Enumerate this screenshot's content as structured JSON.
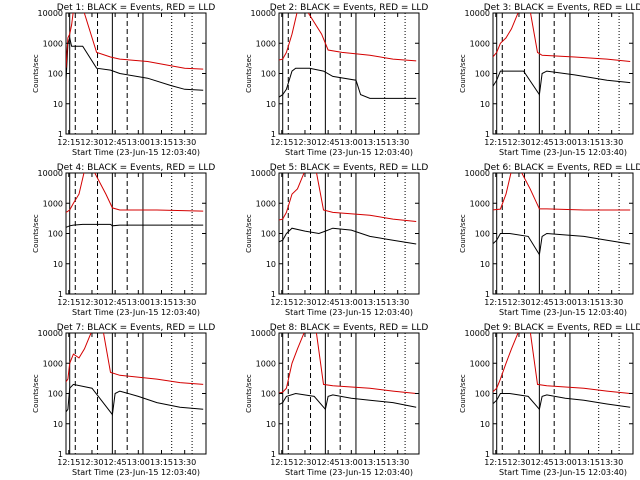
{
  "figure": {
    "start_label": "Start Time (23-Jun-15 12:03:40)",
    "ylabel": "Counts/sec",
    "title_suffix": "BLACK = Events, RED = LLD",
    "colors": {
      "events": "#000000",
      "lld": "#d40000",
      "axes": "#000000",
      "background": "#ffffff"
    }
  },
  "chart_data": [
    {
      "type": "line",
      "title": "Det 1: BLACK = Events, RED = LLD",
      "xlabel": "Start Time (23-Jun-15 12:03:40)",
      "ylabel": "Counts/sec",
      "yscale": "log",
      "ylim": [
        1,
        10000
      ],
      "xlim": [
        12.22,
        13.73
      ],
      "xticks": [
        "12:15",
        "12:30",
        "12:45",
        "13:00",
        "13:15",
        "13:30"
      ],
      "yticks": [
        "1",
        "10",
        "100",
        "1000",
        "10000"
      ],
      "series": [
        {
          "name": "Events",
          "color": "#000000",
          "x": [
            12.2,
            12.22,
            12.24,
            12.26,
            12.28,
            12.3,
            12.4,
            12.55,
            12.7,
            12.8,
            13.1,
            13.35,
            13.5,
            13.7
          ],
          "y": [
            40,
            55,
            950,
            1500,
            800,
            800,
            800,
            150,
            130,
            100,
            70,
            40,
            30,
            28
          ]
        },
        {
          "name": "LLD",
          "color": "#d40000",
          "x": [
            12.2,
            12.22,
            12.24,
            12.26,
            12.28,
            12.3,
            12.4,
            12.55,
            12.7,
            12.8,
            13.1,
            13.35,
            13.5,
            13.7
          ],
          "y": [
            140,
            160,
            1500,
            2000,
            4000,
            12000,
            15000,
            500,
            350,
            300,
            250,
            180,
            150,
            140
          ]
        }
      ]
    },
    {
      "type": "line",
      "title": "Det 2: BLACK = Events, RED = LLD",
      "xlabel": "Start Time (23-Jun-15 12:03:40)",
      "ylabel": "Counts/sec",
      "yscale": "log",
      "ylim": [
        1,
        10000
      ],
      "xlim": [
        12.22,
        13.73
      ],
      "xticks": [
        "12:15",
        "12:30",
        "12:45",
        "13:00",
        "13:15",
        "13:30"
      ],
      "yticks": [
        "1",
        "10",
        "100",
        "1000",
        "10000"
      ],
      "series": [
        {
          "name": "Events",
          "color": "#000000",
          "x": [
            12.2,
            12.26,
            12.3,
            12.36,
            12.4,
            12.55,
            12.7,
            12.8,
            13.05,
            13.1,
            13.2,
            13.45,
            13.7
          ],
          "y": [
            15,
            20,
            30,
            120,
            150,
            150,
            120,
            80,
            60,
            20,
            15,
            15,
            15
          ]
        },
        {
          "name": "LLD",
          "color": "#d40000",
          "x": [
            12.2,
            12.26,
            12.3,
            12.36,
            12.42,
            12.5,
            12.68,
            12.75,
            12.9,
            13.2,
            13.45,
            13.7
          ],
          "y": [
            270,
            300,
            500,
            2000,
            12000,
            15000,
            2000,
            600,
            500,
            400,
            300,
            260
          ]
        }
      ]
    },
    {
      "type": "line",
      "title": "Det 3: BLACK = Events, RED = LLD",
      "xlabel": "Start Time (23-Jun-15 12:03:40)",
      "ylabel": "Counts/sec",
      "yscale": "log",
      "ylim": [
        1,
        10000
      ],
      "xlim": [
        12.22,
        13.73
      ],
      "xticks": [
        "12:15",
        "12:30",
        "12:45",
        "13:00",
        "13:15",
        "13:30"
      ],
      "yticks": [
        "1",
        "10",
        "100",
        "1000",
        "10000"
      ],
      "series": [
        {
          "name": "Events",
          "color": "#000000",
          "x": [
            12.2,
            12.26,
            12.3,
            12.4,
            12.55,
            12.72,
            12.75,
            12.8,
            13.1,
            13.45,
            13.7
          ],
          "y": [
            30,
            60,
            120,
            120,
            120,
            20,
            100,
            120,
            90,
            60,
            50
          ]
        },
        {
          "name": "LLD",
          "color": "#d40000",
          "x": [
            12.2,
            12.26,
            12.3,
            12.36,
            12.42,
            12.5,
            12.62,
            12.7,
            12.75,
            13.1,
            13.45,
            13.7
          ],
          "y": [
            300,
            500,
            1000,
            1500,
            3000,
            12000,
            12000,
            500,
            400,
            350,
            300,
            250
          ]
        }
      ]
    },
    {
      "type": "line",
      "title": "Det 4: BLACK = Events, RED = LLD",
      "xlabel": "Start Time (23-Jun-15 12:03:40)",
      "ylabel": "Counts/sec",
      "yscale": "log",
      "ylim": [
        1,
        10000
      ],
      "xlim": [
        12.22,
        13.73
      ],
      "xticks": [
        "12:15",
        "12:30",
        "12:45",
        "13:00",
        "13:15",
        "13:30"
      ],
      "yticks": [
        "1",
        "10",
        "100",
        "1000",
        "10000"
      ],
      "series": [
        {
          "name": "Events",
          "color": "#000000",
          "x": [
            12.2,
            12.26,
            12.3,
            12.4,
            12.6,
            12.7,
            12.72,
            12.8,
            13.2,
            13.7
          ],
          "y": [
            150,
            180,
            190,
            200,
            200,
            200,
            180,
            190,
            190,
            190
          ]
        },
        {
          "name": "LLD",
          "color": "#d40000",
          "x": [
            12.2,
            12.26,
            12.3,
            12.36,
            12.42,
            12.5,
            12.65,
            12.72,
            12.8,
            13.2,
            13.7
          ],
          "y": [
            450,
            600,
            1000,
            2000,
            12000,
            15000,
            2000,
            700,
            600,
            600,
            550
          ]
        }
      ]
    },
    {
      "type": "line",
      "title": "Det 5: BLACK = Events, RED = LLD",
      "xlabel": "Start Time (23-Jun-15 12:03:40)",
      "ylabel": "Counts/sec",
      "yscale": "log",
      "ylim": [
        1,
        10000
      ],
      "xlim": [
        12.22,
        13.73
      ],
      "xticks": [
        "12:15",
        "12:30",
        "12:45",
        "13:00",
        "13:15",
        "13:30"
      ],
      "yticks": [
        "1",
        "10",
        "100",
        "1000",
        "10000"
      ],
      "series": [
        {
          "name": "Events",
          "color": "#000000",
          "x": [
            12.2,
            12.26,
            12.3,
            12.36,
            12.5,
            12.65,
            12.72,
            12.8,
            13.0,
            13.2,
            13.45,
            13.7
          ],
          "y": [
            50,
            60,
            100,
            150,
            120,
            100,
            120,
            150,
            130,
            80,
            60,
            45
          ]
        },
        {
          "name": "LLD",
          "color": "#d40000",
          "x": [
            12.2,
            12.26,
            12.3,
            12.36,
            12.42,
            12.5,
            12.62,
            12.7,
            12.8,
            13.2,
            13.45,
            13.7
          ],
          "y": [
            270,
            300,
            500,
            2000,
            3000,
            12000,
            12000,
            600,
            500,
            400,
            300,
            250
          ]
        }
      ]
    },
    {
      "type": "line",
      "title": "Det 6: BLACK = Events, RED = LLD",
      "xlabel": "Start Time (23-Jun-15 12:03:40)",
      "ylabel": "Counts/sec",
      "yscale": "log",
      "ylim": [
        1,
        10000
      ],
      "xlim": [
        12.22,
        13.73
      ],
      "xticks": [
        "12:15",
        "12:30",
        "12:45",
        "13:00",
        "13:15",
        "13:30"
      ],
      "yticks": [
        "1",
        "10",
        "100",
        "1000",
        "10000"
      ],
      "series": [
        {
          "name": "Events",
          "color": "#000000",
          "x": [
            12.2,
            12.26,
            12.3,
            12.4,
            12.6,
            12.72,
            12.75,
            12.8,
            13.2,
            13.45,
            13.7
          ],
          "y": [
            40,
            60,
            100,
            100,
            80,
            20,
            80,
            100,
            80,
            60,
            45
          ]
        },
        {
          "name": "LLD",
          "color": "#d40000",
          "x": [
            12.2,
            12.26,
            12.3,
            12.36,
            12.42,
            12.5,
            12.62,
            12.72,
            12.8,
            13.2,
            13.7
          ],
          "y": [
            600,
            620,
            640,
            2000,
            12000,
            15000,
            3000,
            650,
            650,
            600,
            600
          ]
        }
      ]
    },
    {
      "type": "line",
      "title": "Det 7: BLACK = Events, RED = LLD",
      "xlabel": "Start Time (23-Jun-15 12:03:40)",
      "ylabel": "Counts/sec",
      "yscale": "log",
      "ylim": [
        1,
        10000
      ],
      "xlim": [
        12.22,
        13.73
      ],
      "xticks": [
        "12:15",
        "12:30",
        "12:45",
        "13:00",
        "13:15",
        "13:30"
      ],
      "yticks": [
        "1",
        "10",
        "100",
        "1000",
        "10000"
      ],
      "series": [
        {
          "name": "Events",
          "color": "#000000",
          "x": [
            12.2,
            12.24,
            12.26,
            12.3,
            12.5,
            12.72,
            12.75,
            12.8,
            13.0,
            13.2,
            13.45,
            13.7
          ],
          "y": [
            20,
            30,
            150,
            200,
            150,
            20,
            100,
            120,
            80,
            50,
            35,
            30
          ]
        },
        {
          "name": "LLD",
          "color": "#d40000",
          "x": [
            12.2,
            12.24,
            12.26,
            12.3,
            12.36,
            12.42,
            12.5,
            12.62,
            12.7,
            12.8,
            13.2,
            13.45,
            13.7
          ],
          "y": [
            200,
            300,
            1000,
            2000,
            1500,
            3000,
            12000,
            12000,
            500,
            400,
            300,
            230,
            200
          ]
        }
      ]
    },
    {
      "type": "line",
      "title": "Det 8: BLACK = Events, RED = LLD",
      "xlabel": "Start Time (23-Jun-15 12:03:40)",
      "ylabel": "Counts/sec",
      "yscale": "log",
      "ylim": [
        1,
        10000
      ],
      "xlim": [
        12.22,
        13.73
      ],
      "xticks": [
        "12:15",
        "12:30",
        "12:45",
        "13:00",
        "13:15",
        "13:30"
      ],
      "yticks": [
        "1",
        "10",
        "100",
        "1000",
        "10000"
      ],
      "series": [
        {
          "name": "Events",
          "color": "#000000",
          "x": [
            12.2,
            12.26,
            12.3,
            12.4,
            12.6,
            12.72,
            12.75,
            12.8,
            13.0,
            13.2,
            13.45,
            13.7
          ],
          "y": [
            40,
            50,
            80,
            100,
            80,
            30,
            80,
            90,
            70,
            60,
            50,
            35
          ]
        },
        {
          "name": "LLD",
          "color": "#d40000",
          "x": [
            12.2,
            12.26,
            12.3,
            12.36,
            12.42,
            12.5,
            12.62,
            12.7,
            12.8,
            13.2,
            13.45,
            13.7
          ],
          "y": [
            100,
            110,
            150,
            1000,
            3000,
            12000,
            12000,
            200,
            180,
            150,
            120,
            100
          ]
        }
      ]
    },
    {
      "type": "line",
      "title": "Det 9: BLACK = Events, RED = LLD",
      "xlabel": "Start Time (23-Jun-15 12:03:40)",
      "ylabel": "Counts/sec",
      "yscale": "log",
      "ylim": [
        1,
        10000
      ],
      "xlim": [
        12.22,
        13.73
      ],
      "xticks": [
        "12:15",
        "12:30",
        "12:45",
        "13:00",
        "13:15",
        "13:30"
      ],
      "yticks": [
        "1",
        "10",
        "100",
        "1000",
        "10000"
      ],
      "series": [
        {
          "name": "Events",
          "color": "#000000",
          "x": [
            12.2,
            12.26,
            12.3,
            12.4,
            12.6,
            12.72,
            12.75,
            12.8,
            13.0,
            13.2,
            13.45,
            13.7
          ],
          "y": [
            40,
            60,
            100,
            100,
            80,
            30,
            80,
            90,
            70,
            60,
            45,
            35
          ]
        },
        {
          "name": "LLD",
          "color": "#d40000",
          "x": [
            12.2,
            12.26,
            12.3,
            12.36,
            12.42,
            12.5,
            12.62,
            12.7,
            12.8,
            13.2,
            13.45,
            13.7
          ],
          "y": [
            100,
            150,
            300,
            1000,
            3000,
            12000,
            12000,
            200,
            180,
            150,
            120,
            100
          ]
        }
      ]
    }
  ]
}
